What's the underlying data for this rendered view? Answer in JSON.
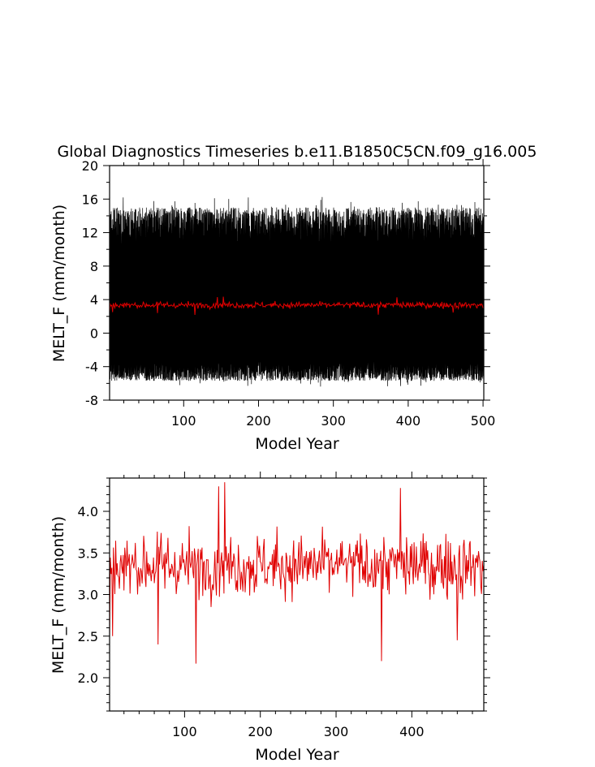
{
  "chart_data": [
    {
      "type": "line",
      "title": "Global Diagnostics Timeseries b.e11.B1850C5CN.f09_g16.005",
      "xlabel": "Model Year",
      "ylabel": "MELT_F (mm/month)",
      "xlim": [
        1,
        501
      ],
      "ylim": [
        -8,
        20
      ],
      "xticks": [
        100,
        200,
        300,
        400,
        500
      ],
      "yticks": [
        -8,
        -4,
        0,
        4,
        8,
        12,
        16,
        20
      ],
      "series": [
        {
          "color": "#000000",
          "description_values": "monthly values (12 per year), oscillating roughly between -6 and 16.5",
          "monthly_low_range": [
            -6.8,
            -3.2
          ],
          "monthly_high_range": [
            10.5,
            16.9
          ],
          "peak_max": 16.9,
          "peak_min": -6.8
        },
        {
          "color": "#e00000",
          "annual_mean_approx": 3.35,
          "range": [
            2.2,
            4.35
          ]
        }
      ]
    },
    {
      "type": "line",
      "title": "",
      "xlabel": "Model Year",
      "ylabel": "MELT_F (mm/month)",
      "xlim": [
        1,
        495
      ],
      "ylim": [
        1.6,
        4.4
      ],
      "xticks": [
        100,
        200,
        300,
        400
      ],
      "yticks": [
        2.0,
        2.5,
        3.0,
        3.5,
        4.0
      ],
      "series": [
        {
          "color": "#e00000",
          "mean": 3.35,
          "min": 2.17,
          "max": 4.35,
          "notable": [
            {
              "x": 1,
              "y": 2.5
            },
            {
              "x": 5,
              "y": 2.5
            },
            {
              "x": 65,
              "y": 2.4
            },
            {
              "x": 115,
              "y": 2.17
            },
            {
              "x": 153,
              "y": 4.35
            },
            {
              "x": 145,
              "y": 4.3
            },
            {
              "x": 360,
              "y": 2.2
            },
            {
              "x": 385,
              "y": 4.28
            },
            {
              "x": 460,
              "y": 2.45
            }
          ]
        }
      ]
    }
  ]
}
